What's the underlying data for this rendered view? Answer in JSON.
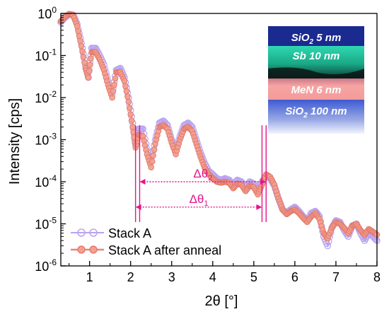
{
  "chart_data": {
    "type": "scatter",
    "xlabel": "2θ [°]",
    "ylabel": "Intensity [cps]",
    "xlim": [
      0.3,
      8.0
    ],
    "ylim": [
      1e-06,
      1.0
    ],
    "yscale": "log",
    "x_ticks": [
      1,
      2,
      3,
      4,
      5,
      6,
      7,
      8
    ],
    "x_tick_labels": [
      "1",
      "2",
      "3",
      "4",
      "5",
      "6",
      "7",
      "8"
    ],
    "y_ticks": [
      1e-06,
      1e-05,
      0.0001,
      0.001,
      0.01,
      0.1,
      1
    ],
    "y_tick_mantissa": [
      "10",
      "10",
      "10",
      "10",
      "10",
      "10",
      "10"
    ],
    "y_tick_exponents": [
      "-6",
      "-5",
      "-4",
      "-3",
      "-2",
      "-1",
      "0"
    ],
    "grid": false,
    "legend_position": "bottom-left",
    "series": [
      {
        "name": "Stack A",
        "color": "#b9a3f0",
        "marker": "open-circle",
        "points": [
          [
            0.3,
            0.62
          ],
          [
            0.4,
            0.8
          ],
          [
            0.5,
            0.95
          ],
          [
            0.6,
            0.92
          ],
          [
            0.7,
            0.55
          ],
          [
            0.8,
            0.2
          ],
          [
            0.9,
            0.06
          ],
          [
            0.97,
            0.03
          ],
          [
            1.05,
            0.15
          ],
          [
            1.15,
            0.15
          ],
          [
            1.25,
            0.1
          ],
          [
            1.35,
            0.06
          ],
          [
            1.45,
            0.025
          ],
          [
            1.55,
            0.012
          ],
          [
            1.65,
            0.045
          ],
          [
            1.75,
            0.05
          ],
          [
            1.85,
            0.03
          ],
          [
            1.95,
            0.01
          ],
          [
            2.05,
            0.0025
          ],
          [
            2.12,
            0.00075
          ],
          [
            2.2,
            0.0018
          ],
          [
            2.3,
            0.0018
          ],
          [
            2.4,
            0.0006
          ],
          [
            2.5,
            0.0003
          ],
          [
            2.6,
            0.001
          ],
          [
            2.7,
            0.0025
          ],
          [
            2.8,
            0.0028
          ],
          [
            2.9,
            0.0022
          ],
          [
            3.0,
            0.001
          ],
          [
            3.1,
            0.00055
          ],
          [
            3.2,
            0.0012
          ],
          [
            3.3,
            0.0022
          ],
          [
            3.4,
            0.0025
          ],
          [
            3.5,
            0.002
          ],
          [
            3.6,
            0.001
          ],
          [
            3.7,
            0.0005
          ],
          [
            3.8,
            0.00028
          ],
          [
            3.9,
            0.00018
          ],
          [
            4.0,
            0.00015
          ],
          [
            4.1,
            0.00012
          ],
          [
            4.2,
            0.00011
          ],
          [
            4.3,
            0.00012
          ],
          [
            4.4,
            0.00011
          ],
          [
            4.5,
            8.5e-05
          ],
          [
            4.6,
            0.00011
          ],
          [
            4.7,
            0.0001
          ],
          [
            4.8,
            7.5e-05
          ],
          [
            4.9,
            0.0001
          ],
          [
            5.0,
            9e-05
          ],
          [
            5.1,
            6.5e-05
          ],
          [
            5.2,
            0.0001
          ],
          [
            5.3,
            0.00014
          ],
          [
            5.4,
            0.00012
          ],
          [
            5.5,
            8e-05
          ],
          [
            5.6,
            4e-05
          ],
          [
            5.7,
            2.2e-05
          ],
          [
            5.8,
            1.8e-05
          ],
          [
            5.9,
            2.2e-05
          ],
          [
            6.0,
            2.5e-05
          ],
          [
            6.1,
            2e-05
          ],
          [
            6.2,
            1.5e-05
          ],
          [
            6.3,
            1.2e-05
          ],
          [
            6.4,
            1.8e-05
          ],
          [
            6.5,
            2e-05
          ],
          [
            6.6,
            1.5e-05
          ],
          [
            6.7,
            5e-06
          ],
          [
            6.8,
            3e-06
          ],
          [
            6.9,
            8e-06
          ],
          [
            7.0,
            1.2e-05
          ],
          [
            7.1,
            1.1e-05
          ],
          [
            7.2,
            7e-06
          ],
          [
            7.3,
            5e-06
          ],
          [
            7.4,
            9e-06
          ],
          [
            7.5,
            1e-05
          ],
          [
            7.6,
            6e-06
          ],
          [
            7.7,
            4e-06
          ],
          [
            7.8,
            6e-06
          ],
          [
            7.9,
            5e-06
          ],
          [
            8.0,
            4e-06
          ]
        ]
      },
      {
        "name": "Stack A after anneal",
        "color": "#f5a08f",
        "marker": "filled-circle",
        "points": [
          [
            0.3,
            0.65
          ],
          [
            0.4,
            0.82
          ],
          [
            0.5,
            0.97
          ],
          [
            0.6,
            0.92
          ],
          [
            0.7,
            0.5
          ],
          [
            0.8,
            0.17
          ],
          [
            0.9,
            0.05
          ],
          [
            0.97,
            0.03
          ],
          [
            1.05,
            0.12
          ],
          [
            1.15,
            0.12
          ],
          [
            1.25,
            0.08
          ],
          [
            1.35,
            0.045
          ],
          [
            1.45,
            0.02
          ],
          [
            1.55,
            0.01
          ],
          [
            1.65,
            0.04
          ],
          [
            1.75,
            0.04
          ],
          [
            1.85,
            0.025
          ],
          [
            1.95,
            0.008
          ],
          [
            2.05,
            0.002
          ],
          [
            2.12,
            0.00065
          ],
          [
            2.2,
            0.0013
          ],
          [
            2.3,
            0.0012
          ],
          [
            2.4,
            0.00045
          ],
          [
            2.5,
            0.00022
          ],
          [
            2.6,
            0.0008
          ],
          [
            2.7,
            0.002
          ],
          [
            2.8,
            0.0022
          ],
          [
            2.9,
            0.0018
          ],
          [
            3.0,
            0.00085
          ],
          [
            3.1,
            0.00045
          ],
          [
            3.2,
            0.001
          ],
          [
            3.3,
            0.0018
          ],
          [
            3.4,
            0.002
          ],
          [
            3.5,
            0.0016
          ],
          [
            3.6,
            0.0008
          ],
          [
            3.7,
            0.0004
          ],
          [
            3.8,
            0.00022
          ],
          [
            3.9,
            0.00015
          ],
          [
            4.0,
            0.00012
          ],
          [
            4.1,
            0.0001
          ],
          [
            4.2,
            9.5e-05
          ],
          [
            4.3,
            0.0001
          ],
          [
            4.4,
            9.5e-05
          ],
          [
            4.5,
            7e-05
          ],
          [
            4.6,
            9e-05
          ],
          [
            4.7,
            8.5e-05
          ],
          [
            4.8,
            6e-05
          ],
          [
            4.9,
            8e-05
          ],
          [
            5.0,
            7.5e-05
          ],
          [
            5.1,
            5e-05
          ],
          [
            5.2,
            8.5e-05
          ],
          [
            5.3,
            0.00015
          ],
          [
            5.4,
            0.00013
          ],
          [
            5.5,
            8.5e-05
          ],
          [
            5.6,
            4e-05
          ],
          [
            5.7,
            2.2e-05
          ],
          [
            5.8,
            1.7e-05
          ],
          [
            5.9,
            2e-05
          ],
          [
            6.0,
            2.2e-05
          ],
          [
            6.1,
            1.8e-05
          ],
          [
            6.2,
            1.4e-05
          ],
          [
            6.3,
            1.1e-05
          ],
          [
            6.4,
            1.5e-05
          ],
          [
            6.5,
            1.8e-05
          ],
          [
            6.6,
            1.3e-05
          ],
          [
            6.7,
            6e-06
          ],
          [
            6.8,
            4.5e-06
          ],
          [
            6.9,
            8e-06
          ],
          [
            7.0,
            1.1e-05
          ],
          [
            7.1,
            1e-05
          ],
          [
            7.2,
            8e-06
          ],
          [
            7.3,
            6e-06
          ],
          [
            7.4,
            9e-06
          ],
          [
            7.5,
            1e-05
          ],
          [
            7.6,
            7e-06
          ],
          [
            7.7,
            5.5e-06
          ],
          [
            7.8,
            7.5e-06
          ],
          [
            7.9,
            6.5e-06
          ],
          [
            8.0,
            5.5e-06
          ]
        ]
      }
    ],
    "markers_vertical": [
      2.12,
      2.22,
      5.2,
      5.3
    ],
    "annotations": [
      {
        "label_base": "Δθ",
        "label_sub": "2",
        "x_from": 2.22,
        "x_to": 5.3,
        "y": 0.0001,
        "color": "#e3158c"
      },
      {
        "label_base": "Δθ",
        "label_sub": "1",
        "x_from": 2.12,
        "x_to": 5.2,
        "y": 2.5e-05,
        "color": "#e3158c"
      }
    ],
    "inset": {
      "type": "layer-stack",
      "layers": [
        {
          "label": "SiO",
          "sub": "2",
          "rest": " 5 nm",
          "color": "#1a2a8f"
        },
        {
          "label": "Sb",
          "sub": "",
          "rest": " 10 nm",
          "color": "#27c8a5"
        },
        {
          "label": "MeN",
          "sub": "",
          "rest": " 6 nm",
          "color": "#f4a2a2"
        },
        {
          "label": "SiO",
          "sub": "2",
          "rest": " 100 nm",
          "color": "#4a66d6"
        }
      ]
    }
  }
}
